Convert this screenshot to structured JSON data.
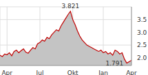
{
  "chart_data": {
    "type": "area",
    "categories": [
      null,
      null,
      null,
      "Apr",
      null,
      null,
      null,
      null,
      null,
      null,
      null,
      null,
      null,
      null,
      null,
      null,
      null,
      "Jul",
      null,
      null,
      null,
      null,
      null,
      null,
      null,
      null,
      null,
      null,
      null,
      null,
      null,
      "Okt",
      null,
      null,
      null,
      null,
      null,
      null,
      null,
      null,
      null,
      null,
      null,
      null,
      "Jan",
      null,
      null,
      null,
      null,
      null,
      null,
      null,
      null,
      null,
      null,
      null,
      "Apr"
    ],
    "series": [
      {
        "color": "#c00000",
        "values": [
          2.1,
          2.05,
          2.15,
          2.12,
          2.2,
          2.08,
          2.25,
          2.3,
          2.2,
          2.28,
          2.35,
          2.22,
          2.18,
          2.3,
          2.4,
          2.35,
          2.55,
          2.6,
          2.7,
          2.65,
          2.8,
          2.75,
          2.9,
          3.0,
          3.1,
          3.05,
          3.25,
          3.4,
          3.55,
          3.7,
          3.821,
          3.5,
          3.3,
          3.05,
          2.85,
          2.7,
          2.6,
          2.5,
          2.45,
          2.4,
          2.35,
          2.3,
          2.25,
          2.3,
          2.2,
          2.25,
          2.15,
          2.2,
          2.1,
          2.3,
          2.25,
          2.15,
          2.2,
          1.95,
          1.791,
          1.85,
          1.9
        ]
      }
    ],
    "ylim": [
      1.7,
      4.0
    ],
    "yticks": [
      {
        "value": 2,
        "label": "2.0"
      },
      2.5,
      {
        "value": 3,
        "label": "3.0"
      },
      3.5
    ],
    "grid": true,
    "annotations": [
      {
        "text": "3.821",
        "x": 30,
        "y": 3.821,
        "position": "top"
      },
      {
        "text": "1.791",
        "x": 54,
        "y": 1.791,
        "position": "left"
      }
    ]
  }
}
